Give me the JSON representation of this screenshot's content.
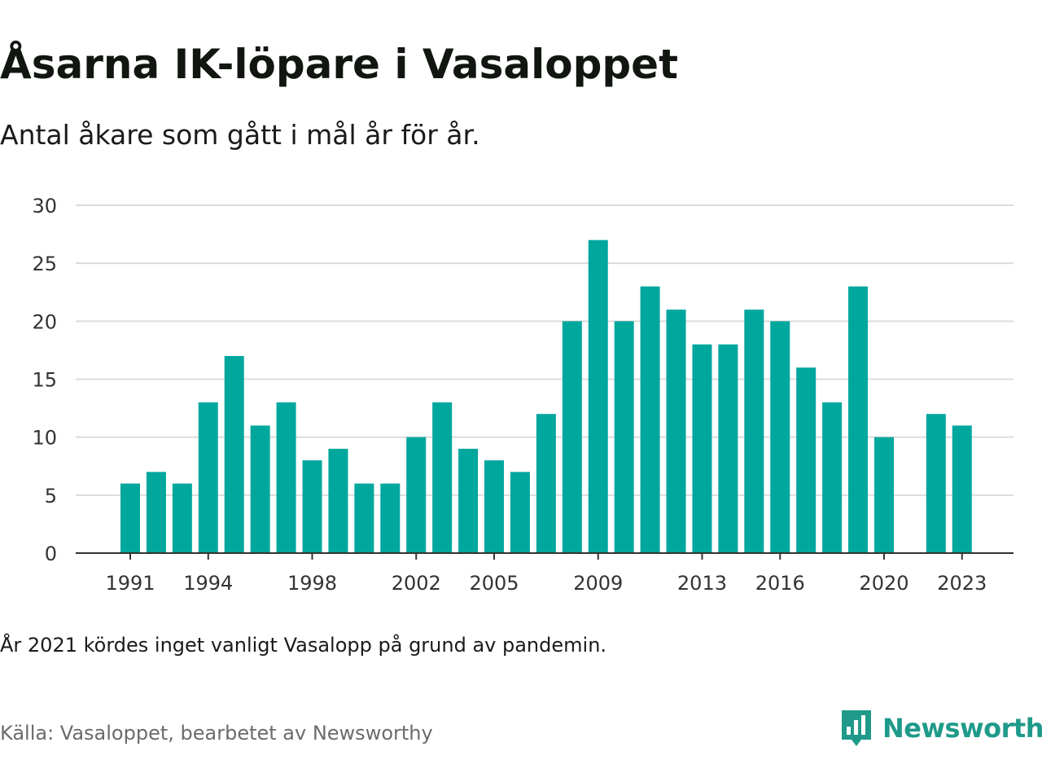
{
  "header": {
    "title": "Åsarna IK-löpare i Vasaloppet",
    "subtitle": "Antal åkare som gått i mål år för år."
  },
  "footer": {
    "note": "År 2021 kördes inget vanligt Vasalopp på grund av pandemin.",
    "source": "Källa: Vasaloppet, bearbetet av Newsworthy",
    "brand": "Newsworthy"
  },
  "colors": {
    "bar": "#00a79d",
    "grid": "#dcdcdc",
    "axis": "#333333",
    "brand": "#1f9a8a"
  },
  "chart_data": {
    "type": "bar",
    "title": "Åsarna IK-löpare i Vasaloppet",
    "x": [
      1991,
      1992,
      1993,
      1994,
      1995,
      1996,
      1997,
      1998,
      1999,
      2000,
      2001,
      2002,
      2003,
      2004,
      2005,
      2006,
      2007,
      2008,
      2009,
      2010,
      2011,
      2012,
      2013,
      2014,
      2015,
      2016,
      2017,
      2018,
      2019,
      2020,
      2021,
      2022,
      2023
    ],
    "values": [
      6,
      7,
      6,
      13,
      17,
      11,
      13,
      8,
      9,
      6,
      6,
      10,
      13,
      9,
      8,
      7,
      12,
      20,
      27,
      20,
      23,
      21,
      18,
      18,
      21,
      20,
      16,
      13,
      23,
      10,
      null,
      12,
      11
    ],
    "x_tick_labels": [
      1991,
      1994,
      1998,
      2002,
      2005,
      2009,
      2013,
      2016,
      2020,
      2023
    ],
    "y_ticks": [
      0,
      5,
      10,
      15,
      20,
      25,
      30
    ],
    "ylim": [
      0,
      30
    ],
    "xlabel": "",
    "ylabel": "",
    "grid": true,
    "legend": "none"
  }
}
